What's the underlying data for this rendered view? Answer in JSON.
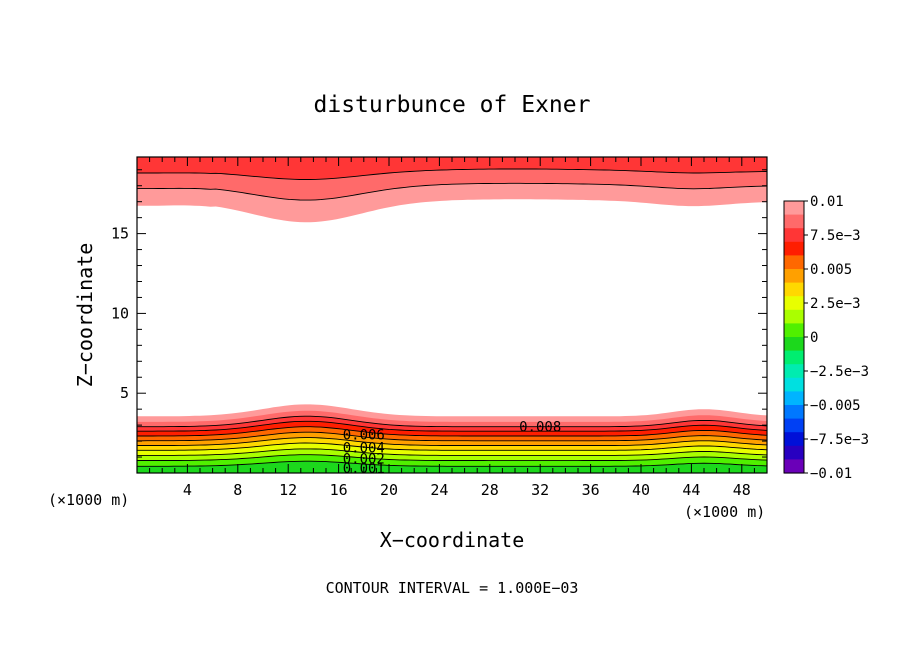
{
  "chart_data": {
    "type": "contour",
    "title": "disturbunce of Exner",
    "xlabel": "X−coordinate",
    "ylabel": "Z−coordinate",
    "x_unit_left": "(×1000 m)",
    "x_unit_right": "(×1000 m)",
    "footer": "CONTOUR INTERVAL = 1.000E−03",
    "xlim": [
      0,
      50
    ],
    "ylim": [
      0,
      19.8
    ],
    "x_ticks": [
      "4",
      "8",
      "12",
      "16",
      "20",
      "24",
      "28",
      "32",
      "36",
      "40",
      "44",
      "48"
    ],
    "x_tick_values": [
      4,
      8,
      12,
      16,
      20,
      24,
      28,
      32,
      36,
      40,
      44,
      48
    ],
    "y_ticks": [
      "5",
      "10",
      "15"
    ],
    "y_tick_values": [
      5,
      10,
      15
    ],
    "contour_interval": 0.001,
    "contour_labels": [
      {
        "text": "0.008",
        "x": 32.0,
        "z": 2.9
      },
      {
        "text": "0.006",
        "x": 18.0,
        "z": 2.4
      },
      {
        "text": "0.004",
        "x": 18.0,
        "z": 1.6
      },
      {
        "text": "0.002",
        "x": 18.0,
        "z": 0.9
      },
      {
        "text": "0.001",
        "x": 18.0,
        "z": 0.3
      }
    ],
    "colorbar": {
      "labels": [
        "0.01",
        "7.5e−3",
        "0.005",
        "2.5e−3",
        "0",
        "−2.5e−3",
        "−0.005",
        "−7.5e−3",
        "−0.01"
      ],
      "label_values": [
        0.01,
        0.0075,
        0.005,
        0.0025,
        0,
        -0.0025,
        -0.005,
        -0.0075,
        -0.01
      ],
      "colors_top_to_bottom": [
        "#ff9a9a",
        "#ff6a6a",
        "#ff3636",
        "#ff1e00",
        "#ff6800",
        "#ffa000",
        "#ffd800",
        "#e8ff00",
        "#aaff00",
        "#50f000",
        "#1cd81c",
        "#00ee70",
        "#00ecb0",
        "#00e0e0",
        "#00b4ff",
        "#0078ff",
        "#0040f4",
        "#0010d8",
        "#2800c0",
        "#6a00b8"
      ]
    },
    "lower_band_colors": [
      "#ff9a9a",
      "#ff6a6a",
      "#ff3636",
      "#ff1e00",
      "#ff6800",
      "#ffa000",
      "#ffd800",
      "#e8ff00",
      "#aaff00",
      "#50f000",
      "#1cd81c"
    ],
    "upper_band_colors": [
      "#ff9a9a",
      "#ff6a6a",
      "#ff3636"
    ]
  }
}
